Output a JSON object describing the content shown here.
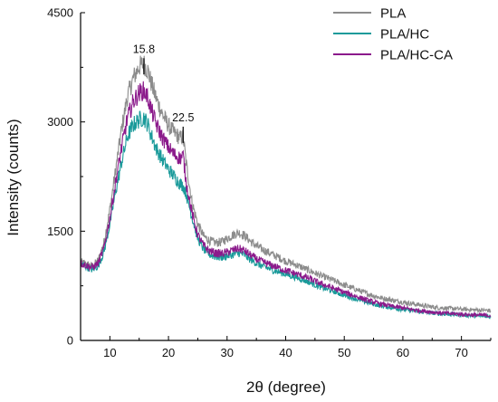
{
  "chart_data": {
    "type": "line",
    "title": "",
    "xlabel": "2θ (degree)",
    "ylabel": "Intensity (counts)",
    "xlim": [
      5,
      75
    ],
    "ylim": [
      0,
      4500
    ],
    "x_ticks": [
      10,
      20,
      30,
      40,
      50,
      60,
      70
    ],
    "y_ticks": [
      0,
      1500,
      3000,
      4500
    ],
    "grid": false,
    "legend_position": "top-right",
    "series": [
      {
        "name": "PLA",
        "color": "#8c8c8c",
        "x": [
          5,
          6,
          7,
          8,
          9,
          10,
          11,
          12,
          13,
          14,
          15,
          15.8,
          16.5,
          17,
          18,
          19,
          20,
          21,
          22,
          22.5,
          23,
          24,
          25,
          26,
          27,
          28,
          29,
          30,
          31,
          32,
          33,
          34,
          35,
          36,
          38,
          40,
          42,
          44,
          46,
          48,
          50,
          52,
          54,
          56,
          58,
          60,
          62,
          64,
          66,
          68,
          70,
          72,
          75
        ],
        "y": [
          1080,
          1050,
          1020,
          1100,
          1350,
          1800,
          2350,
          2900,
          3350,
          3600,
          3760,
          3800,
          3700,
          3550,
          3300,
          3100,
          2950,
          2850,
          2780,
          2800,
          2450,
          1900,
          1600,
          1430,
          1370,
          1340,
          1350,
          1400,
          1450,
          1480,
          1440,
          1360,
          1300,
          1250,
          1170,
          1090,
          1030,
          960,
          890,
          830,
          760,
          700,
          640,
          590,
          555,
          525,
          500,
          470,
          450,
          440,
          430,
          420,
          410
        ]
      },
      {
        "name": "PLA/HC",
        "color": "#1a9a9a",
        "x": [
          5,
          6,
          7,
          8,
          9,
          10,
          11,
          12,
          13,
          14,
          15,
          15.8,
          16.5,
          17,
          18,
          19,
          20,
          21,
          22,
          22.5,
          23,
          24,
          25,
          26,
          27,
          28,
          29,
          30,
          31,
          32,
          33,
          34,
          35,
          36,
          38,
          40,
          42,
          44,
          46,
          48,
          50,
          52,
          54,
          56,
          58,
          60,
          62,
          64,
          66,
          68,
          70,
          72,
          75
        ],
        "y": [
          1050,
          1010,
          970,
          1020,
          1220,
          1600,
          2050,
          2450,
          2800,
          2960,
          3030,
          3060,
          2960,
          2830,
          2620,
          2480,
          2350,
          2250,
          2150,
          2120,
          2020,
          1700,
          1400,
          1250,
          1180,
          1150,
          1140,
          1160,
          1180,
          1200,
          1170,
          1110,
          1060,
          1020,
          960,
          910,
          860,
          800,
          730,
          680,
          620,
          570,
          520,
          480,
          450,
          425,
          405,
          385,
          370,
          360,
          350,
          340,
          330
        ]
      },
      {
        "name": "PLA/HC-CA",
        "color": "#8b1a8b",
        "x": [
          5,
          6,
          7,
          8,
          9,
          10,
          11,
          12,
          13,
          14,
          15,
          15.8,
          16.5,
          17,
          18,
          19,
          20,
          21,
          22,
          22.5,
          23,
          24,
          25,
          26,
          27,
          28,
          29,
          30,
          31,
          32,
          33,
          34,
          35,
          36,
          38,
          40,
          42,
          44,
          46,
          48,
          50,
          52,
          54,
          56,
          58,
          60,
          62,
          64,
          66,
          68,
          70,
          72,
          75
        ],
        "y": [
          1060,
          1030,
          1000,
          1060,
          1270,
          1680,
          2180,
          2650,
          3050,
          3280,
          3400,
          3430,
          3330,
          3180,
          2950,
          2780,
          2650,
          2550,
          2500,
          2540,
          2180,
          1750,
          1450,
          1300,
          1230,
          1200,
          1190,
          1210,
          1240,
          1260,
          1230,
          1170,
          1120,
          1080,
          1020,
          960,
          910,
          850,
          780,
          720,
          660,
          605,
          550,
          505,
          470,
          445,
          420,
          400,
          380,
          370,
          360,
          350,
          340
        ]
      }
    ],
    "annotations": [
      {
        "text": "15.8",
        "x": 15.8,
        "y": 3900
      },
      {
        "text": "22.5",
        "x": 22.5,
        "y": 2960
      }
    ]
  }
}
